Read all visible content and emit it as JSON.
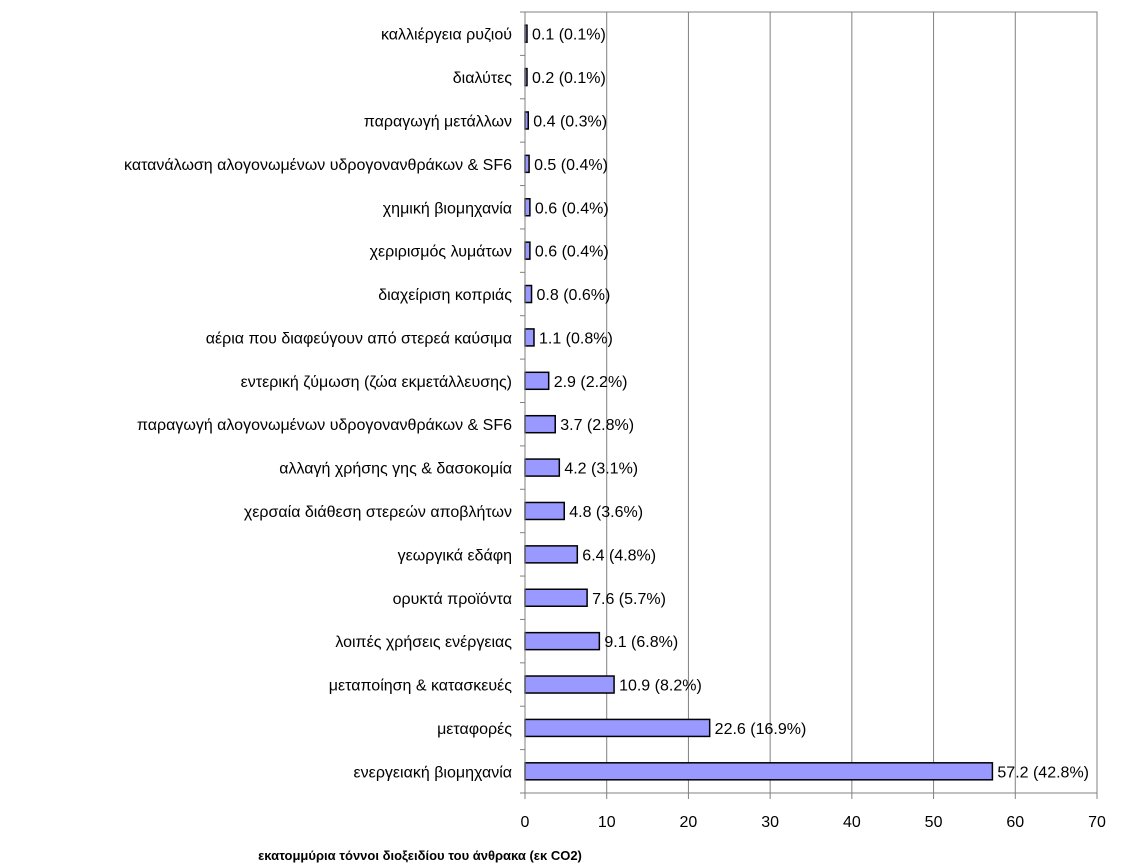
{
  "chart_data": {
    "type": "bar",
    "orientation": "horizontal",
    "categories": [
      "καλλιέργεια ρυζιού",
      "διαλύτες",
      "παραγωγή μετάλλων",
      "κατανάλωση αλογονωμένων υδρογονανθράκων & SF6",
      "χημική βιομηχανία",
      "χεριρισμός λυμάτων",
      "διαχείριση κοπριάς",
      "αέρια που διαφεύγουν από στερεά καύσιμα",
      "εντερική ζύμωση (ζώα εκμετάλλευσης)",
      "παραγωγή αλογονωμένων υδρογονανθράκων & SF6",
      "αλλαγή χρήσης γης & δασοκομία",
      "χερσαία διάθεση στερεών αποβλήτων",
      "γεωργικά εδάφη",
      "ορυκτά προϊόντα",
      "λοιπές χρήσεις ενέργειας",
      "μεταποίηση & κατασκευές",
      "μεταφορές",
      "ενεργειακή βιομηχανία"
    ],
    "values": [
      0.1,
      0.2,
      0.4,
      0.5,
      0.6,
      0.6,
      0.8,
      1.1,
      2.9,
      3.7,
      4.2,
      4.8,
      6.4,
      7.6,
      9.1,
      10.9,
      22.6,
      57.2
    ],
    "data_labels": [
      "0.1 (0.1%)",
      "0.2 (0.1%)",
      "0.4 (0.3%)",
      "0.5 (0.4%)",
      "0.6 (0.4%)",
      "0.6 (0.4%)",
      "0.8 (0.6%)",
      "1.1 (0.8%)",
      "2.9 (2.2%)",
      "3.7 (2.8%)",
      "4.2 (3.1%)",
      "4.8 (3.6%)",
      "6.4 (4.8%)",
      "7.6 (5.7%)",
      "9.1 (6.8%)",
      "10.9 (8.2%)",
      "22.6 (16.9%)",
      "57.2 (42.8%)"
    ],
    "xlim": [
      0,
      70
    ],
    "x_ticks": [
      0,
      10,
      20,
      30,
      40,
      50,
      60,
      70
    ],
    "xlabel": "εκατομμύρια τόννοι διοξειδίου του άνθρακα (εκ CO2)",
    "ylabel": "",
    "title": "",
    "grid": "vertical",
    "legend": "none",
    "colors": {
      "bar_fill": "#9999ff",
      "bar_stroke": "#000000",
      "grid": "#808080",
      "axis": "#808080"
    }
  }
}
